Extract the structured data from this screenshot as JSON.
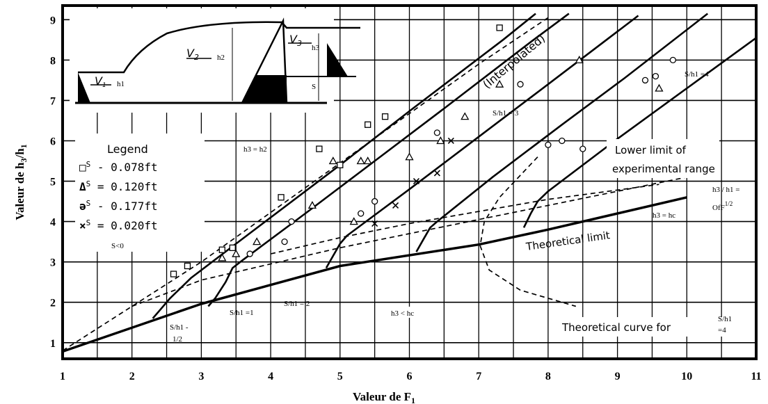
{
  "chart_data": {
    "type": "line",
    "xlabel": "Valeur de F",
    "xlabel_sub": "1",
    "ylabel": "Valeur de h",
    "ylabel_sub1": "3",
    "ylabel_mid": "/h",
    "ylabel_sub2": "1",
    "xlim": [
      1,
      11
    ],
    "ylim": [
      0.6,
      9.35
    ],
    "x_ticks": [
      "1",
      "2",
      "3",
      "4",
      "5",
      "6",
      "7",
      "8",
      "9",
      "10",
      "11"
    ],
    "y_ticks": [
      "1",
      "2",
      "3",
      "4",
      "5",
      "6",
      "7",
      "8",
      "9"
    ],
    "grid": true,
    "legend_placement": "left",
    "series": [
      {
        "key": "theoretical_limit",
        "style": "thick",
        "points": [
          [
            1,
            0.78
          ],
          [
            3,
            1.96
          ],
          [
            5,
            2.9
          ],
          [
            7,
            3.43
          ],
          [
            8,
            3.8
          ],
          [
            9,
            4.2
          ],
          [
            10,
            4.6
          ]
        ]
      },
      {
        "key": "h3_eq_h2",
        "style": "dashed",
        "points": [
          [
            1,
            0.8
          ],
          [
            3,
            3.0
          ],
          [
            5,
            5.45
          ],
          [
            7,
            7.9
          ],
          [
            8,
            9.05
          ]
        ]
      },
      {
        "key": "lower_limit",
        "style": "dashed",
        "points": [
          [
            2,
            1.9
          ],
          [
            3,
            2.55
          ],
          [
            4,
            2.95
          ],
          [
            5,
            3.35
          ],
          [
            6,
            3.7
          ],
          [
            7,
            4.05
          ],
          [
            8,
            4.4
          ],
          [
            9,
            4.75
          ],
          [
            10,
            5.1
          ]
        ]
      },
      {
        "key": "hc_limit",
        "style": "dashed",
        "points": [
          [
            4,
            3.2
          ],
          [
            5,
            3.6
          ],
          [
            6,
            3.95
          ],
          [
            7,
            4.25
          ],
          [
            8,
            4.55
          ],
          [
            9,
            4.78
          ],
          [
            9.6,
            4.92
          ]
        ]
      },
      {
        "key": "theoretical_curve",
        "style": "dashed",
        "points": [
          [
            7.85,
            5.6
          ],
          [
            7.3,
            4.6
          ],
          [
            7.08,
            4.0
          ],
          [
            7.02,
            3.4
          ],
          [
            7.15,
            2.8
          ],
          [
            7.6,
            2.3
          ],
          [
            8.4,
            1.9
          ]
        ]
      },
      {
        "key": "S_h1_half",
        "style": "solid",
        "points": [
          [
            2.3,
            1.6
          ],
          [
            2.4,
            1.8
          ],
          [
            2.55,
            2.1
          ],
          [
            2.7,
            2.35
          ],
          [
            2.85,
            2.6
          ],
          [
            3.5,
            3.45
          ],
          [
            5.0,
            5.4
          ],
          [
            6.05,
            6.8
          ],
          [
            7.35,
            8.5
          ],
          [
            7.82,
            9.15
          ]
        ]
      },
      {
        "key": "S_h1_1",
        "style": "solid",
        "points": [
          [
            3.1,
            1.9
          ],
          [
            3.2,
            2.1
          ],
          [
            3.35,
            2.5
          ],
          [
            3.45,
            2.85
          ],
          [
            3.6,
            3.05
          ],
          [
            4.5,
            4.2
          ],
          [
            5.5,
            5.5
          ],
          [
            6.5,
            6.8
          ],
          [
            7.75,
            8.45
          ],
          [
            8.3,
            9.15
          ]
        ]
      },
      {
        "key": "S_h1_2",
        "style": "solid",
        "points": [
          [
            4.8,
            2.85
          ],
          [
            4.9,
            3.15
          ],
          [
            5.0,
            3.45
          ],
          [
            5.1,
            3.65
          ],
          [
            6.0,
            4.8
          ],
          [
            7.0,
            6.1
          ],
          [
            8.0,
            7.4
          ],
          [
            9.3,
            9.1
          ]
        ]
      },
      {
        "key": "S_h1_3",
        "style": "solid",
        "points": [
          [
            6.1,
            3.25
          ],
          [
            6.2,
            3.55
          ],
          [
            6.3,
            3.85
          ],
          [
            6.4,
            4.0
          ],
          [
            7.2,
            5.1
          ],
          [
            8.2,
            6.4
          ],
          [
            9.1,
            7.55
          ],
          [
            10.3,
            9.15
          ]
        ]
      },
      {
        "key": "S_h1_4",
        "style": "solid",
        "points": [
          [
            7.65,
            3.85
          ],
          [
            7.75,
            4.2
          ],
          [
            7.85,
            4.5
          ],
          [
            8.0,
            4.75
          ],
          [
            9.0,
            6.05
          ],
          [
            10.0,
            7.3
          ],
          [
            11.0,
            8.55
          ]
        ]
      }
    ],
    "data_points": [
      {
        "m": "square",
        "pts": [
          [
            2.6,
            2.7
          ],
          [
            2.8,
            2.9
          ],
          [
            3.3,
            3.3
          ],
          [
            3.45,
            3.35
          ],
          [
            4.15,
            4.6
          ],
          [
            4.7,
            5.8
          ],
          [
            5.0,
            5.4
          ],
          [
            5.4,
            6.4
          ],
          [
            5.65,
            6.6
          ],
          [
            7.3,
            8.8
          ]
        ]
      },
      {
        "m": "triangle",
        "pts": [
          [
            3.3,
            3.1
          ],
          [
            3.5,
            3.2
          ],
          [
            3.8,
            3.5
          ],
          [
            4.6,
            4.4
          ],
          [
            4.9,
            5.5
          ],
          [
            5.3,
            5.5
          ],
          [
            5.4,
            5.5
          ],
          [
            5.2,
            4.0
          ],
          [
            6.0,
            5.6
          ],
          [
            6.45,
            6.0
          ],
          [
            6.8,
            6.6
          ],
          [
            7.3,
            7.4
          ],
          [
            8.45,
            8.0
          ],
          [
            9.6,
            7.3
          ]
        ]
      },
      {
        "m": "circle",
        "pts": [
          [
            3.7,
            3.2
          ],
          [
            4.2,
            3.5
          ],
          [
            4.3,
            4.0
          ],
          [
            5.5,
            4.5
          ],
          [
            5.3,
            4.2
          ],
          [
            6.4,
            6.2
          ],
          [
            7.6,
            7.4
          ],
          [
            8.0,
            5.9
          ],
          [
            8.2,
            6.0
          ],
          [
            8.5,
            5.8
          ],
          [
            9.4,
            7.5
          ],
          [
            9.55,
            7.6
          ],
          [
            9.8,
            8.0
          ]
        ]
      },
      {
        "m": "cross",
        "pts": [
          [
            5.5,
            3.95
          ],
          [
            5.8,
            4.4
          ],
          [
            6.1,
            5.0
          ],
          [
            6.4,
            5.2
          ],
          [
            6.6,
            6.0
          ]
        ]
      }
    ],
    "annotations": {
      "interpolated": "(Interpolated)",
      "lower_limit_1": "Lower limit of",
      "lower_limit_2": "experimental range",
      "theoretical_limit": "Theoretical limit",
      "theoretical_curve_1": "Theoretical curve for",
      "theoretical_curve_s": "S/h1",
      "theoretical_curve_4": "=4",
      "h3_eq_h2": "h3 = h2",
      "h3_lt_hc": "h3 < hc",
      "h3_eq_hc": "h3 = hc",
      "of_f": "OfF",
      "of_f_sup": "1/2",
      "h3_h1": "h3 / h1 =",
      "s_lt_0": "S<0",
      "s_half_1": "S/h1 -",
      "s_half_2": "1/2",
      "s_1": "S/h1 =1",
      "s_2": "S/h1 = 2",
      "s_3": "S/h1 = 3",
      "s_4": "S/h1 =4"
    },
    "legend": {
      "title": "Legend",
      "items": [
        {
          "symbol": "□",
          "prefix": "S",
          "text": "- 0.078ft"
        },
        {
          "symbol": "Δ",
          "prefix": "S",
          "text": "= 0.120ft"
        },
        {
          "symbol": "ә",
          "prefix": "S",
          "text": "- 0.177ft"
        },
        {
          "symbol": "×",
          "prefix": "S",
          "text": "= 0.020ft"
        }
      ]
    },
    "inset": {
      "v1": "V",
      "v1_sub": "1",
      "h1": "h1",
      "v2": "V",
      "v2_sub": "2",
      "h2": "h2",
      "v3": "V",
      "v3_sub": "3",
      "h3": "h3",
      "s": "S"
    }
  }
}
